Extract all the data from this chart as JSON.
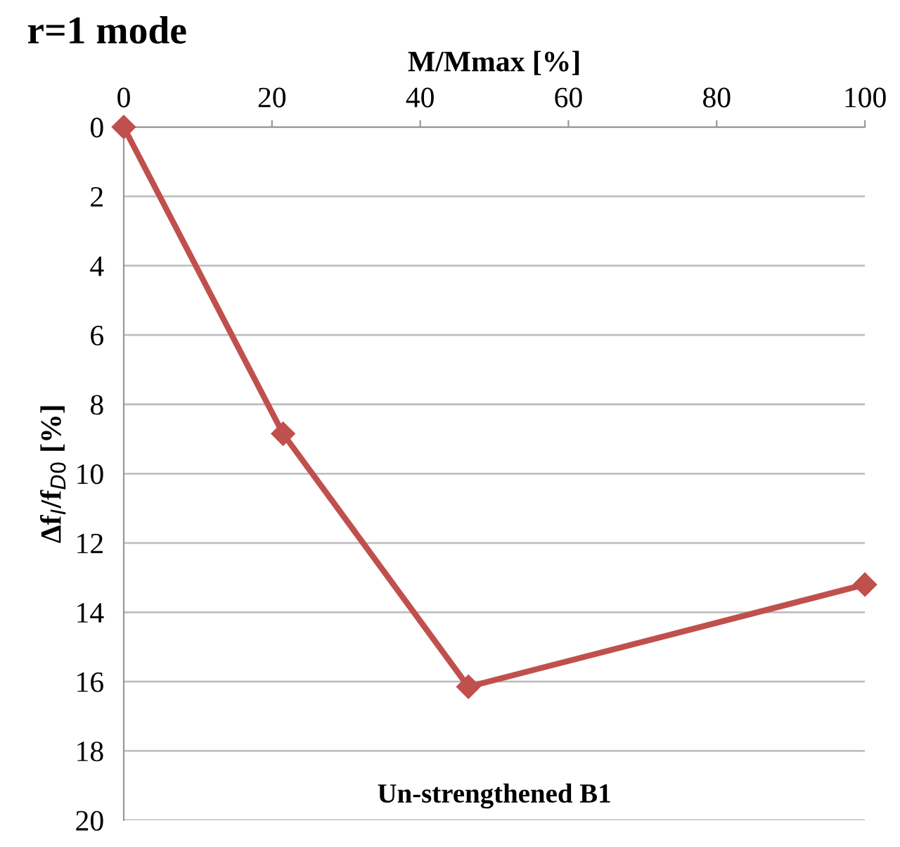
{
  "chart_data": {
    "type": "line",
    "title": "r=1 mode",
    "xlabel": "M/Mmax [%]",
    "ylabel": "Δf$_{I}$/f$_{D0}$ [%]",
    "annotations": [
      "Un-strengthened B1"
    ],
    "x": [
      0,
      21.5,
      46.5,
      100
    ],
    "series": [
      {
        "color": "#c0504d",
        "values": [
          0,
          8.85,
          16.15,
          13.2
        ]
      }
    ],
    "xlim": [
      0,
      100
    ],
    "xticks": [
      0,
      20,
      40,
      60,
      80,
      100
    ],
    "ylim": [
      20,
      0
    ],
    "yticks": [
      0,
      2,
      4,
      6,
      8,
      10,
      12,
      14,
      16,
      18,
      20
    ],
    "grid": "y",
    "marker": "diamond",
    "line_style": "solid"
  }
}
